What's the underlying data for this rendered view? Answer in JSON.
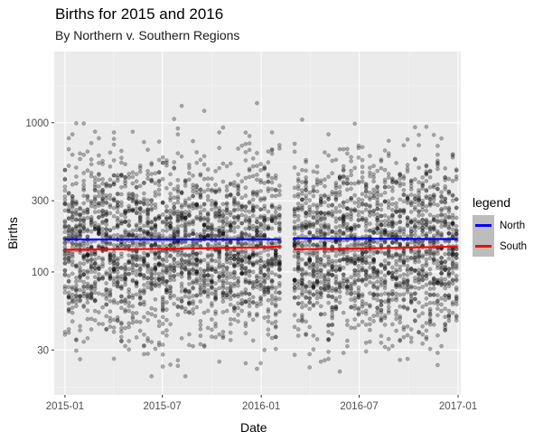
{
  "chart_data": {
    "type": "scatter",
    "title": "Births for 2015 and 2016",
    "subtitle": "By Northern v. Southern Regions",
    "xlabel": "Date",
    "ylabel": "Births",
    "x_ticks": [
      "2015-01",
      "2015-07",
      "2016-01",
      "2016-07",
      "2017-01"
    ],
    "y_ticks": [
      30,
      100,
      300,
      1000
    ],
    "y_scale": "log",
    "ylim": [
      15,
      3000
    ],
    "xlim": [
      "2014-12-12",
      "2017-01-06"
    ],
    "grid": true,
    "legend": {
      "title": "legend",
      "position": "right",
      "entries": [
        {
          "name": "North",
          "color": "#0000ff"
        },
        {
          "name": "South",
          "color": "#ff0000"
        }
      ]
    },
    "series": [
      {
        "name": "North",
        "segments": [
          {
            "x": [
              "2015-01-01",
              "2016-02-06"
            ],
            "y": [
              165,
              165
            ]
          },
          {
            "x": [
              "2016-03-01",
              "2016-12-31"
            ],
            "y": [
              168,
              166
            ]
          }
        ]
      },
      {
        "name": "South",
        "segments": [
          {
            "x": [
              "2015-01-01",
              "2015-05-01",
              "2015-09-01",
              "2016-01-01",
              "2016-02-06"
            ],
            "y": [
              141,
              142,
              144,
              146,
              148
            ]
          },
          {
            "x": [
              "2016-03-01",
              "2016-06-01",
              "2016-09-01",
              "2016-12-31"
            ],
            "y": [
              142,
              143,
              145,
              148
            ]
          }
        ]
      }
    ],
    "points": {
      "description_range": "daily observations per region, January 2015 to December 2016, missing February 2016",
      "y_min": 20,
      "y_max": 1600,
      "color": "#000000",
      "alpha": 0.3
    }
  }
}
